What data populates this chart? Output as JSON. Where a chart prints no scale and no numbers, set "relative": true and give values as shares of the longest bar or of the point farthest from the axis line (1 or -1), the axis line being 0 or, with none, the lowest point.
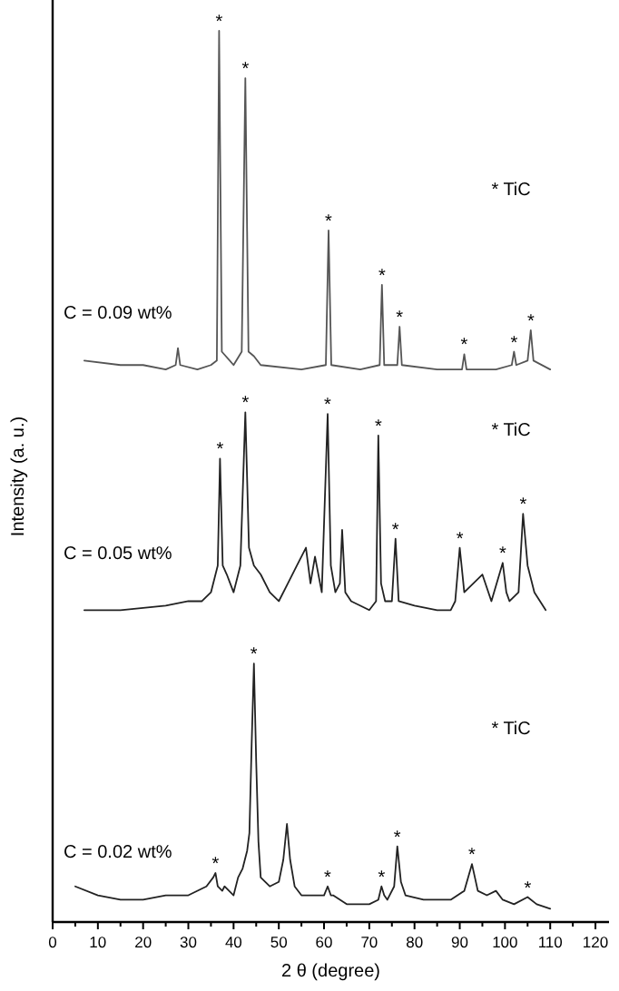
{
  "chart_data": {
    "type": "line",
    "relative": true,
    "xlabel": "2 θ (degree)",
    "ylabel": "Intensity (a. u.)",
    "xlim": [
      0,
      123
    ],
    "xticks": [
      0,
      {
        "value": 5,
        "label": null
      },
      10,
      {
        "value": 15,
        "label": null
      },
      20,
      {
        "value": 25,
        "label": null
      },
      30,
      {
        "value": 35,
        "label": null
      },
      40,
      {
        "value": 45,
        "label": null
      },
      50,
      {
        "value": 55,
        "label": null
      },
      60,
      {
        "value": 65,
        "label": null
      },
      70,
      {
        "value": 75,
        "label": null
      },
      80,
      {
        "value": 85,
        "label": null
      },
      90,
      {
        "value": 95,
        "label": null
      },
      100,
      {
        "value": 105,
        "label": null
      },
      110,
      {
        "value": 115,
        "label": null
      },
      120
    ],
    "grid": false,
    "legend": false,
    "marker": "none",
    "line_style": "solid",
    "series": [
      {
        "name": "C = 0.09 wt%",
        "color": "#555555",
        "x": [
          7,
          15,
          20,
          25,
          27.2,
          27.7,
          28.2,
          32,
          35,
          36.3,
          36.8,
          37.4,
          40,
          41.8,
          42.6,
          43.3,
          44.5,
          46,
          55,
          60.4,
          61,
          61.6,
          68,
          72.3,
          72.8,
          73.3,
          76.2,
          76.7,
          77.2,
          85,
          90.5,
          91,
          91.5,
          98,
          101.5,
          102,
          102.5,
          105,
          105.7,
          106.3,
          110
        ],
        "values": [
          0.63,
          0.625,
          0.625,
          0.62,
          0.625,
          0.644,
          0.625,
          0.62,
          0.625,
          0.63,
          1.0,
          0.64,
          0.625,
          0.64,
          0.947,
          0.64,
          0.635,
          0.625,
          0.62,
          0.625,
          0.776,
          0.625,
          0.62,
          0.625,
          0.715,
          0.625,
          0.625,
          0.668,
          0.625,
          0.62,
          0.62,
          0.637,
          0.62,
          0.62,
          0.625,
          0.64,
          0.625,
          0.63,
          0.664,
          0.63,
          0.62
        ]
      },
      {
        "name": "C = 0.05 wt%",
        "color": "#222222",
        "x": [
          7,
          15,
          25,
          30,
          33,
          35,
          36.5,
          37,
          37.6,
          38.5,
          40,
          41.5,
          42.6,
          43.4,
          44.5,
          46,
          48,
          50,
          52,
          54,
          56,
          57,
          58,
          59.5,
          60.8,
          61.5,
          62.5,
          63.5,
          64,
          64.7,
          66,
          70,
          71.5,
          72,
          72.6,
          73.5,
          75,
          75.8,
          76.5,
          80,
          85,
          88,
          89,
          90,
          91,
          93,
          95,
          97,
          99.5,
          100.3,
          101,
          103,
          104,
          105,
          106.5,
          109
        ],
        "values": [
          0.35,
          0.35,
          0.355,
          0.36,
          0.36,
          0.37,
          0.4,
          0.52,
          0.4,
          0.39,
          0.37,
          0.4,
          0.572,
          0.42,
          0.4,
          0.39,
          0.37,
          0.36,
          0.38,
          0.4,
          0.42,
          0.38,
          0.41,
          0.37,
          0.57,
          0.4,
          0.37,
          0.38,
          0.44,
          0.37,
          0.36,
          0.35,
          0.36,
          0.546,
          0.38,
          0.36,
          0.36,
          0.43,
          0.36,
          0.355,
          0.35,
          0.35,
          0.36,
          0.42,
          0.37,
          0.38,
          0.39,
          0.36,
          0.403,
          0.37,
          0.36,
          0.37,
          0.458,
          0.4,
          0.37,
          0.35
        ]
      },
      {
        "name": "C = 0.02 wt%",
        "color": "#222222",
        "x": [
          5,
          10,
          15,
          20,
          25,
          30,
          34,
          35.5,
          36,
          36.5,
          37.5,
          38,
          40,
          41,
          42,
          42.5,
          43,
          43.5,
          44,
          44.5,
          45,
          45.5,
          46,
          48,
          50,
          51,
          51.8,
          52.5,
          53.5,
          55,
          58,
          60,
          60.8,
          61.5,
          62,
          65,
          70,
          72,
          72.7,
          73.3,
          74,
          75.5,
          76.2,
          77,
          78,
          82,
          88,
          91,
          92.7,
          94,
          96,
          98,
          99.5,
          102,
          105,
          107,
          110
        ],
        "values": [
          0.04,
          0.03,
          0.025,
          0.025,
          0.03,
          0.03,
          0.04,
          0.05,
          0.055,
          0.04,
          0.035,
          0.04,
          0.03,
          0.05,
          0.06,
          0.07,
          0.08,
          0.1,
          0.2,
          0.29,
          0.18,
          0.09,
          0.05,
          0.04,
          0.045,
          0.07,
          0.11,
          0.07,
          0.04,
          0.03,
          0.03,
          0.03,
          0.04,
          0.03,
          0.03,
          0.02,
          0.02,
          0.025,
          0.04,
          0.03,
          0.025,
          0.04,
          0.085,
          0.045,
          0.03,
          0.025,
          0.025,
          0.035,
          0.065,
          0.035,
          0.03,
          0.035,
          0.025,
          0.02,
          0.028,
          0.02,
          0.015
        ]
      }
    ],
    "annotations": [
      "* TiC",
      "* TiC",
      "* TiC",
      {
        "text": "*",
        "x": 36.8,
        "y": 1.0
      },
      {
        "text": "*",
        "x": 42.6,
        "y": 0.947
      },
      {
        "text": "*",
        "x": 61,
        "y": 0.776
      },
      {
        "text": "*",
        "x": 72.8,
        "y": 0.715
      },
      {
        "text": "*",
        "x": 76.7,
        "y": 0.668
      },
      {
        "text": "*",
        "x": 91,
        "y": 0.637
      },
      {
        "text": "*",
        "x": 102,
        "y": 0.64
      },
      {
        "text": "*",
        "x": 105.7,
        "y": 0.664
      },
      {
        "text": "*",
        "x": 37,
        "y": 0.52
      },
      {
        "text": "*",
        "x": 42.6,
        "y": 0.572
      },
      {
        "text": "*",
        "x": 60.8,
        "y": 0.57
      },
      {
        "text": "*",
        "x": 72,
        "y": 0.546
      },
      {
        "text": "*",
        "x": 75.8,
        "y": 0.43
      },
      {
        "text": "*",
        "x": 90,
        "y": 0.42
      },
      {
        "text": "*",
        "x": 99.5,
        "y": 0.403
      },
      {
        "text": "*",
        "x": 104,
        "y": 0.458
      },
      {
        "text": "*",
        "x": 36,
        "y": 0.055
      },
      {
        "text": "*",
        "x": 44.5,
        "y": 0.29
      },
      {
        "text": "*",
        "x": 60.8,
        "y": 0.04
      },
      {
        "text": "*",
        "x": 72.7,
        "y": 0.04
      },
      {
        "text": "*",
        "x": 76.2,
        "y": 0.085
      },
      {
        "text": "*",
        "x": 92.7,
        "y": 0.065
      },
      {
        "text": "*",
        "x": 105,
        "y": 0.028
      }
    ]
  }
}
